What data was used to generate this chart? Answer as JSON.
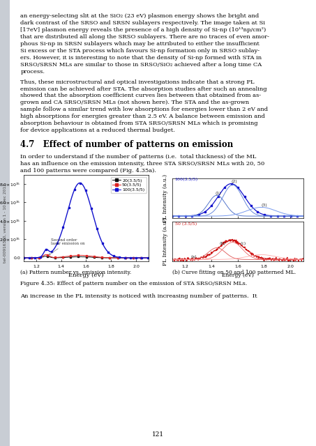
{
  "page_bg": "#f5f5f5",
  "sidebar_color": "#c8cdd4",
  "content_bg": "#ffffff",
  "sidebar_text": "tel-00916300, version 1 - 10 Dec 2013",
  "title_section": "4.7   Effect of number of patterns on emission",
  "body_text_1": "In order to understand if the number of patterns (i.e.  total thickness) of the ML",
  "body_text_2": "has an influence on the emission intensity, three STA SRSO/SRSN MLs with 20, 50",
  "body_text_3": "and 100 patterns were compared (Fig. 4.35a).",
  "caption_a": "(a) Pattern number vs. emission intensity.",
  "caption_b": "(b) Curve fitting on 50 and 100 patterned ML.",
  "figure_caption": "Figure 4.35: Effect of pattern number on the emission of STA SRSO/SRSN MLs.",
  "bottom_text": "An increase in the PL intensity is noticed with increasing number of patterns.  It",
  "page_number": "121",
  "top_text_lines": [
    "an energy-selecting slit at the SiO₂ (23 eV) plasmon energy shows the bright and",
    "dark contrast of the SRSO and SRSN sublayers respectively. The image taken at Si",
    "[17eV] plasmon energy reveals the presence of a high density of Si-np (10¹³np/cm²)",
    "that are distributed all along the SRSO sublayers. There are no traces of even amor-",
    "phous Si-np in SRSN sublayers which may be attributed to either the insufficient",
    "Si excess or the STA process which favours Si-np formation only in SRSO sublay-",
    "ers. However, it is interesting to note that the density of Si-np formed with STA in",
    "SRSO/SRSN MLs are similar to those in SRSO/SiO₂ achieved after a long time CA",
    "process."
  ],
  "middle_text_lines": [
    "Thus, these microstructural and optical investigations indicate that a strong PL",
    "emission can be achieved after STA. The absorption studies after such an annealing",
    "showed that the absorption coefficient curves lies between that obtained from as-",
    "grown and CA SRSO/SRSN MLs (not shown here). The STA and the as-grown",
    "sample follow a similar trend with low absorptions for energies lower than 2 eV and",
    "high absorptions for energies greater than 2.5 eV. A balance between emission and",
    "absorption behaviour is obtained from STA SRSO/SRSN MLs which is promising",
    "for device applications at a reduced thermal budget."
  ],
  "plot_left_colors": [
    "#111111",
    "#dd2222",
    "#1111cc"
  ],
  "plot_left_legend": [
    "20(3.5/5)",
    "50(3.5/5)",
    "100(3.5/5)"
  ],
  "plot_xlabel": "Energy (eV)",
  "plot_ylabel": "PL Intensity (a.u.)",
  "annotation_text": "Second order\nlaser emission on"
}
